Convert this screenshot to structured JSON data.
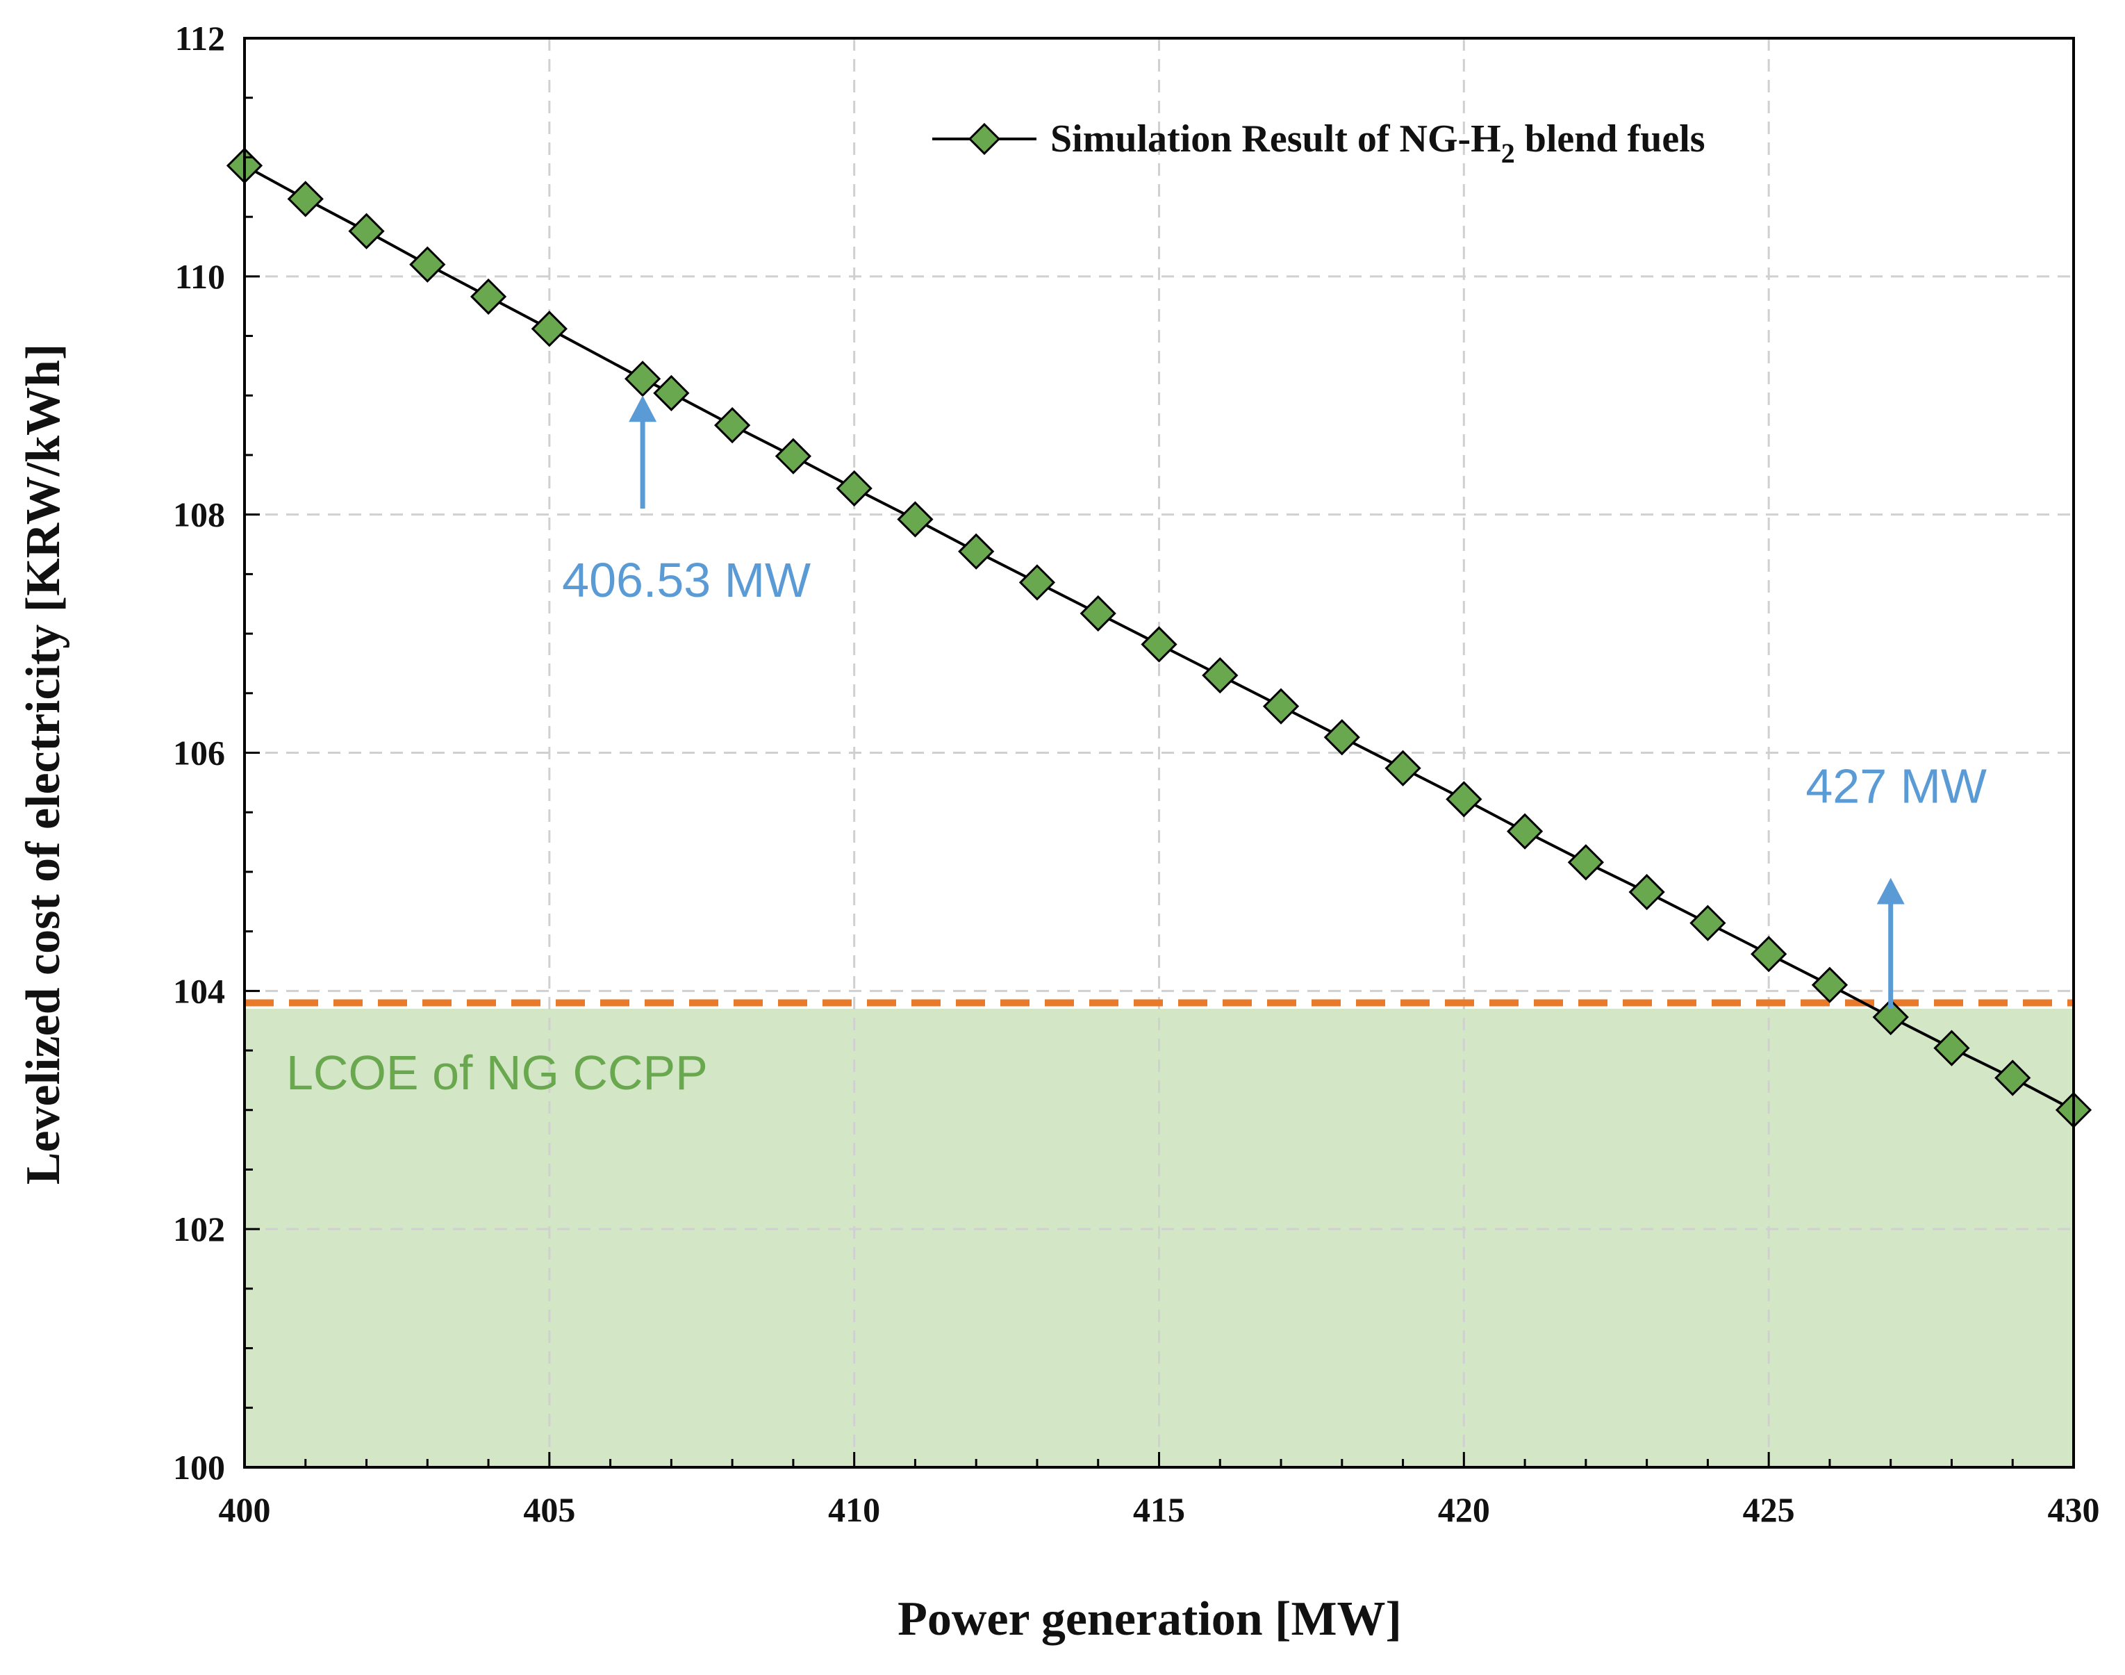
{
  "chart_data": {
    "type": "line",
    "title": "",
    "xlabel": "Power generation [MW]",
    "ylabel": "Levelized cost of electricity [KRW/kWh]",
    "xlim": [
      400,
      430
    ],
    "ylim": [
      100,
      112
    ],
    "x_ticks": [
      "400",
      "405",
      "410",
      "415",
      "420",
      "425",
      "430"
    ],
    "y_ticks": [
      "100",
      "102",
      "104",
      "106",
      "108",
      "110",
      "112"
    ],
    "grid": "dashed",
    "legend_position": "top-right",
    "series": [
      {
        "name": "Simulation Result of NG-H2 blend fuels",
        "legend": {
          "prefix": "Simulation Result of NG-H",
          "subscript": "2",
          "suffix": " blend fuels"
        },
        "color": "#6aa84f",
        "line_color": "#000000",
        "marker": "diamond",
        "points": [
          [
            400,
            110.93
          ],
          [
            401,
            110.65
          ],
          [
            402,
            110.38
          ],
          [
            403,
            110.1
          ],
          [
            404,
            109.83
          ],
          [
            405,
            109.56
          ],
          [
            406.53,
            109.14
          ],
          [
            407,
            109.02
          ],
          [
            408,
            108.75
          ],
          [
            409,
            108.49
          ],
          [
            410,
            108.22
          ],
          [
            411,
            107.96
          ],
          [
            412,
            107.69
          ],
          [
            413,
            107.43
          ],
          [
            414,
            107.17
          ],
          [
            415,
            106.91
          ],
          [
            416,
            106.65
          ],
          [
            417,
            106.39
          ],
          [
            418,
            106.13
          ],
          [
            419,
            105.87
          ],
          [
            420,
            105.61
          ],
          [
            421,
            105.34
          ],
          [
            422,
            105.08
          ],
          [
            423,
            104.83
          ],
          [
            424,
            104.57
          ],
          [
            425,
            104.31
          ],
          [
            426,
            104.05
          ],
          [
            427,
            103.78
          ],
          [
            428,
            103.52
          ],
          [
            429,
            103.27
          ],
          [
            430,
            103.0
          ]
        ]
      }
    ],
    "reference_line": {
      "y": 103.9,
      "color": "#e87a2a",
      "style": "dashed"
    },
    "shaded_region": {
      "y_from": 100,
      "y_to": 103.85,
      "label": "LCOE of NG CCPP",
      "fill_color": "#d3e6c6",
      "label_color": "#6aa84f"
    },
    "annotations": [
      {
        "text": "406.53 MW",
        "x": 406.53,
        "arrow_from_y": 108.05,
        "arrow_to_y": 109.0,
        "text_y": 107.45,
        "direction": "up",
        "color": "#5b9bd5"
      },
      {
        "text": "427 MW",
        "x": 427,
        "arrow_from_y": 103.85,
        "arrow_to_y": 104.95,
        "text_y": 105.72,
        "direction": "up",
        "color": "#5b9bd5"
      }
    ]
  }
}
